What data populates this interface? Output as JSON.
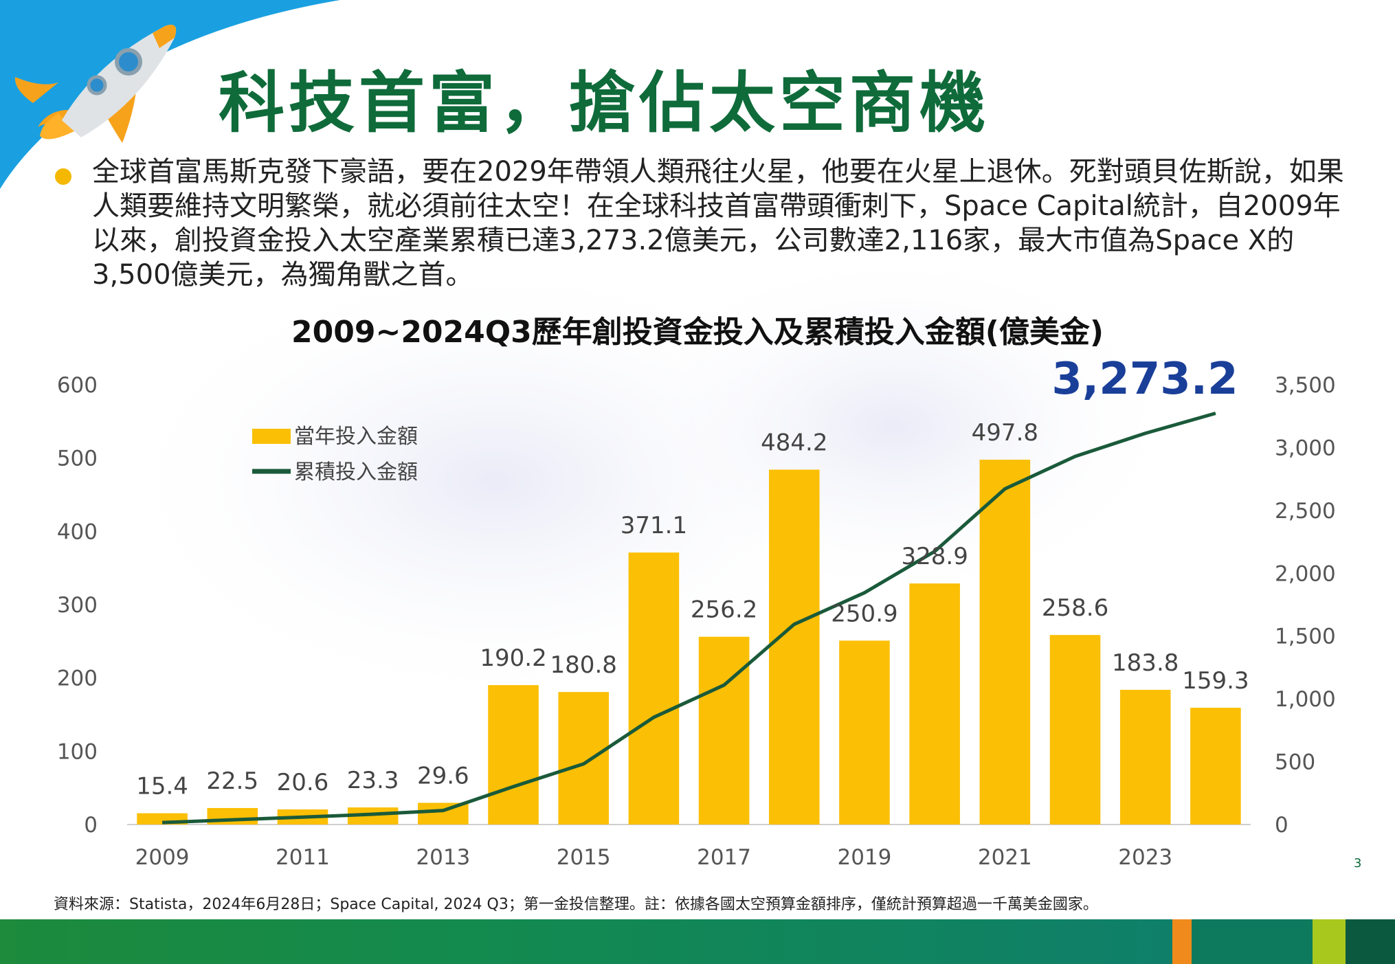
{
  "title": "科技首富，搶佔太空商機",
  "body_text": "全球首富馬斯克發下豪語，要在2029年帶領人類飛往火星，他要在火星上退休。死對頭貝佐斯說，如果人類要維持文明繁榮，就必須前往太空！在全球科技首富帶頭衝刺下，Space Capital統計，自2009年以來，創投資金投入太空產業累積已達3,273.2億美元，公司數達2,116家，最大市值為Space X的3,500億美元，為獨角獸之首。",
  "source_note": "資料來源：Statista，2024年6月28日；Space Capital, 2024 Q3；第一金投信整理。註：依據各國太空預算金額排序，僅統計預算超過一千萬美金國家。",
  "page_number": "3",
  "colors": {
    "title": "#0f6b3a",
    "bar": "#fbbf05",
    "line": "#1a5a3a",
    "highlight": "#1a3f99",
    "bullet": "#f5b800"
  },
  "chart_data": {
    "type": "bar",
    "title": "2009~2024Q3歷年創投資金投入及累積投入金額(億美金)",
    "categories": [
      "2009",
      "2010",
      "2011",
      "2012",
      "2013",
      "2014",
      "2015",
      "2016",
      "2017",
      "2018",
      "2019",
      "2020",
      "2021",
      "2022",
      "2023",
      "2024"
    ],
    "x_tick_labels": [
      "2009",
      "",
      "2011",
      "",
      "2013",
      "",
      "2015",
      "",
      "2017",
      "",
      "2019",
      "",
      "2021",
      "",
      "2023",
      ""
    ],
    "series": [
      {
        "name": "當年投入金額",
        "type": "bar",
        "axis": "left",
        "values": [
          15.4,
          22.5,
          20.6,
          23.3,
          29.6,
          190.2,
          180.8,
          371.1,
          256.2,
          484.2,
          250.9,
          328.9,
          497.8,
          258.6,
          183.8,
          159.3
        ],
        "labels": [
          "15.4",
          "22.5",
          "20.6",
          "23.3",
          "29.6",
          "190.2",
          "180.8",
          "371.1",
          "256.2",
          "484.2",
          "250.9",
          "328.9",
          "497.8",
          "258.6",
          "183.8",
          "159.3"
        ]
      },
      {
        "name": "累積投入金額",
        "type": "line",
        "axis": "right",
        "values": [
          15.4,
          37.9,
          58.5,
          81.8,
          111.4,
          301.6,
          482.4,
          853.5,
          1109.7,
          1593.9,
          1844.8,
          2173.7,
          2671.5,
          2930.1,
          3113.9,
          3273.2
        ]
      }
    ],
    "y_left": {
      "ylim": [
        0,
        600
      ],
      "ticks": [
        "0",
        "100",
        "200",
        "300",
        "400",
        "500",
        "600"
      ]
    },
    "y_right": {
      "ylim": [
        0,
        3500
      ],
      "ticks": [
        "0",
        "500",
        "1,000",
        "1,500",
        "2,000",
        "2,500",
        "3,000",
        "3,500"
      ]
    },
    "highlight_label": "3,273.2",
    "legend_position": "top-left",
    "grid": false
  }
}
